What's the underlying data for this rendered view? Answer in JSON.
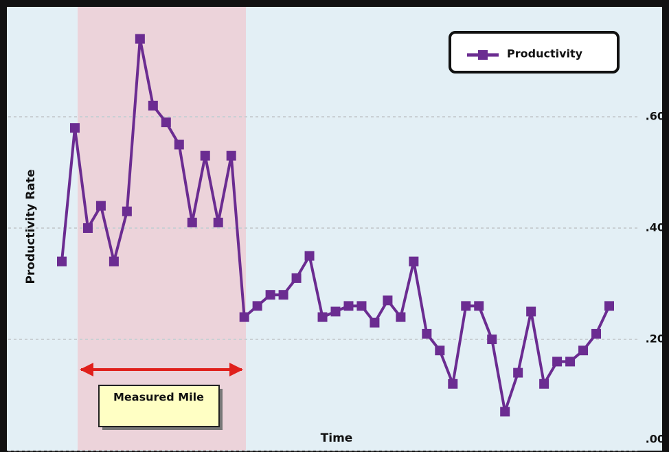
{
  "chart_data": {
    "type": "line",
    "y_label": "Productivity Rate",
    "x_label": "Time",
    "annotation": "Measured Mile",
    "categories": [
      null,
      null,
      null,
      null,
      null,
      null,
      null,
      null,
      null,
      null,
      null,
      null,
      null,
      null,
      null,
      null,
      null,
      null,
      null,
      null,
      null,
      null,
      null,
      null,
      null,
      null,
      null,
      null,
      null,
      null,
      null,
      null,
      null,
      null,
      null,
      null,
      null,
      null,
      null,
      null,
      null,
      null,
      null
    ],
    "series": [
      {
        "name": "Productivity",
        "color": "#6b2c91",
        "values": [
          0.34,
          0.58,
          0.4,
          0.44,
          0.34,
          0.43,
          0.74,
          0.62,
          0.59,
          0.55,
          0.41,
          0.53,
          0.41,
          0.53,
          0.24,
          0.26,
          0.28,
          0.28,
          0.31,
          0.35,
          0.24,
          0.25,
          0.26,
          0.26,
          0.23,
          0.27,
          0.24,
          0.34,
          0.21,
          0.18,
          0.12,
          0.26,
          0.26,
          0.2,
          0.07,
          0.14,
          0.25,
          0.12,
          0.16,
          0.16,
          0.18,
          0.21,
          0.26
        ]
      }
    ],
    "ylim": [
      0,
      0.8
    ],
    "yticks": [
      {
        "value": 0,
        "label": ".00"
      },
      {
        "value": 0.2,
        "label": ".20"
      },
      {
        "value": 0.4,
        "label": ".40"
      },
      {
        "value": 0.6,
        "label": ".60"
      }
    ],
    "y_axis_side": "right",
    "grid": true,
    "legend": "top-right"
  }
}
